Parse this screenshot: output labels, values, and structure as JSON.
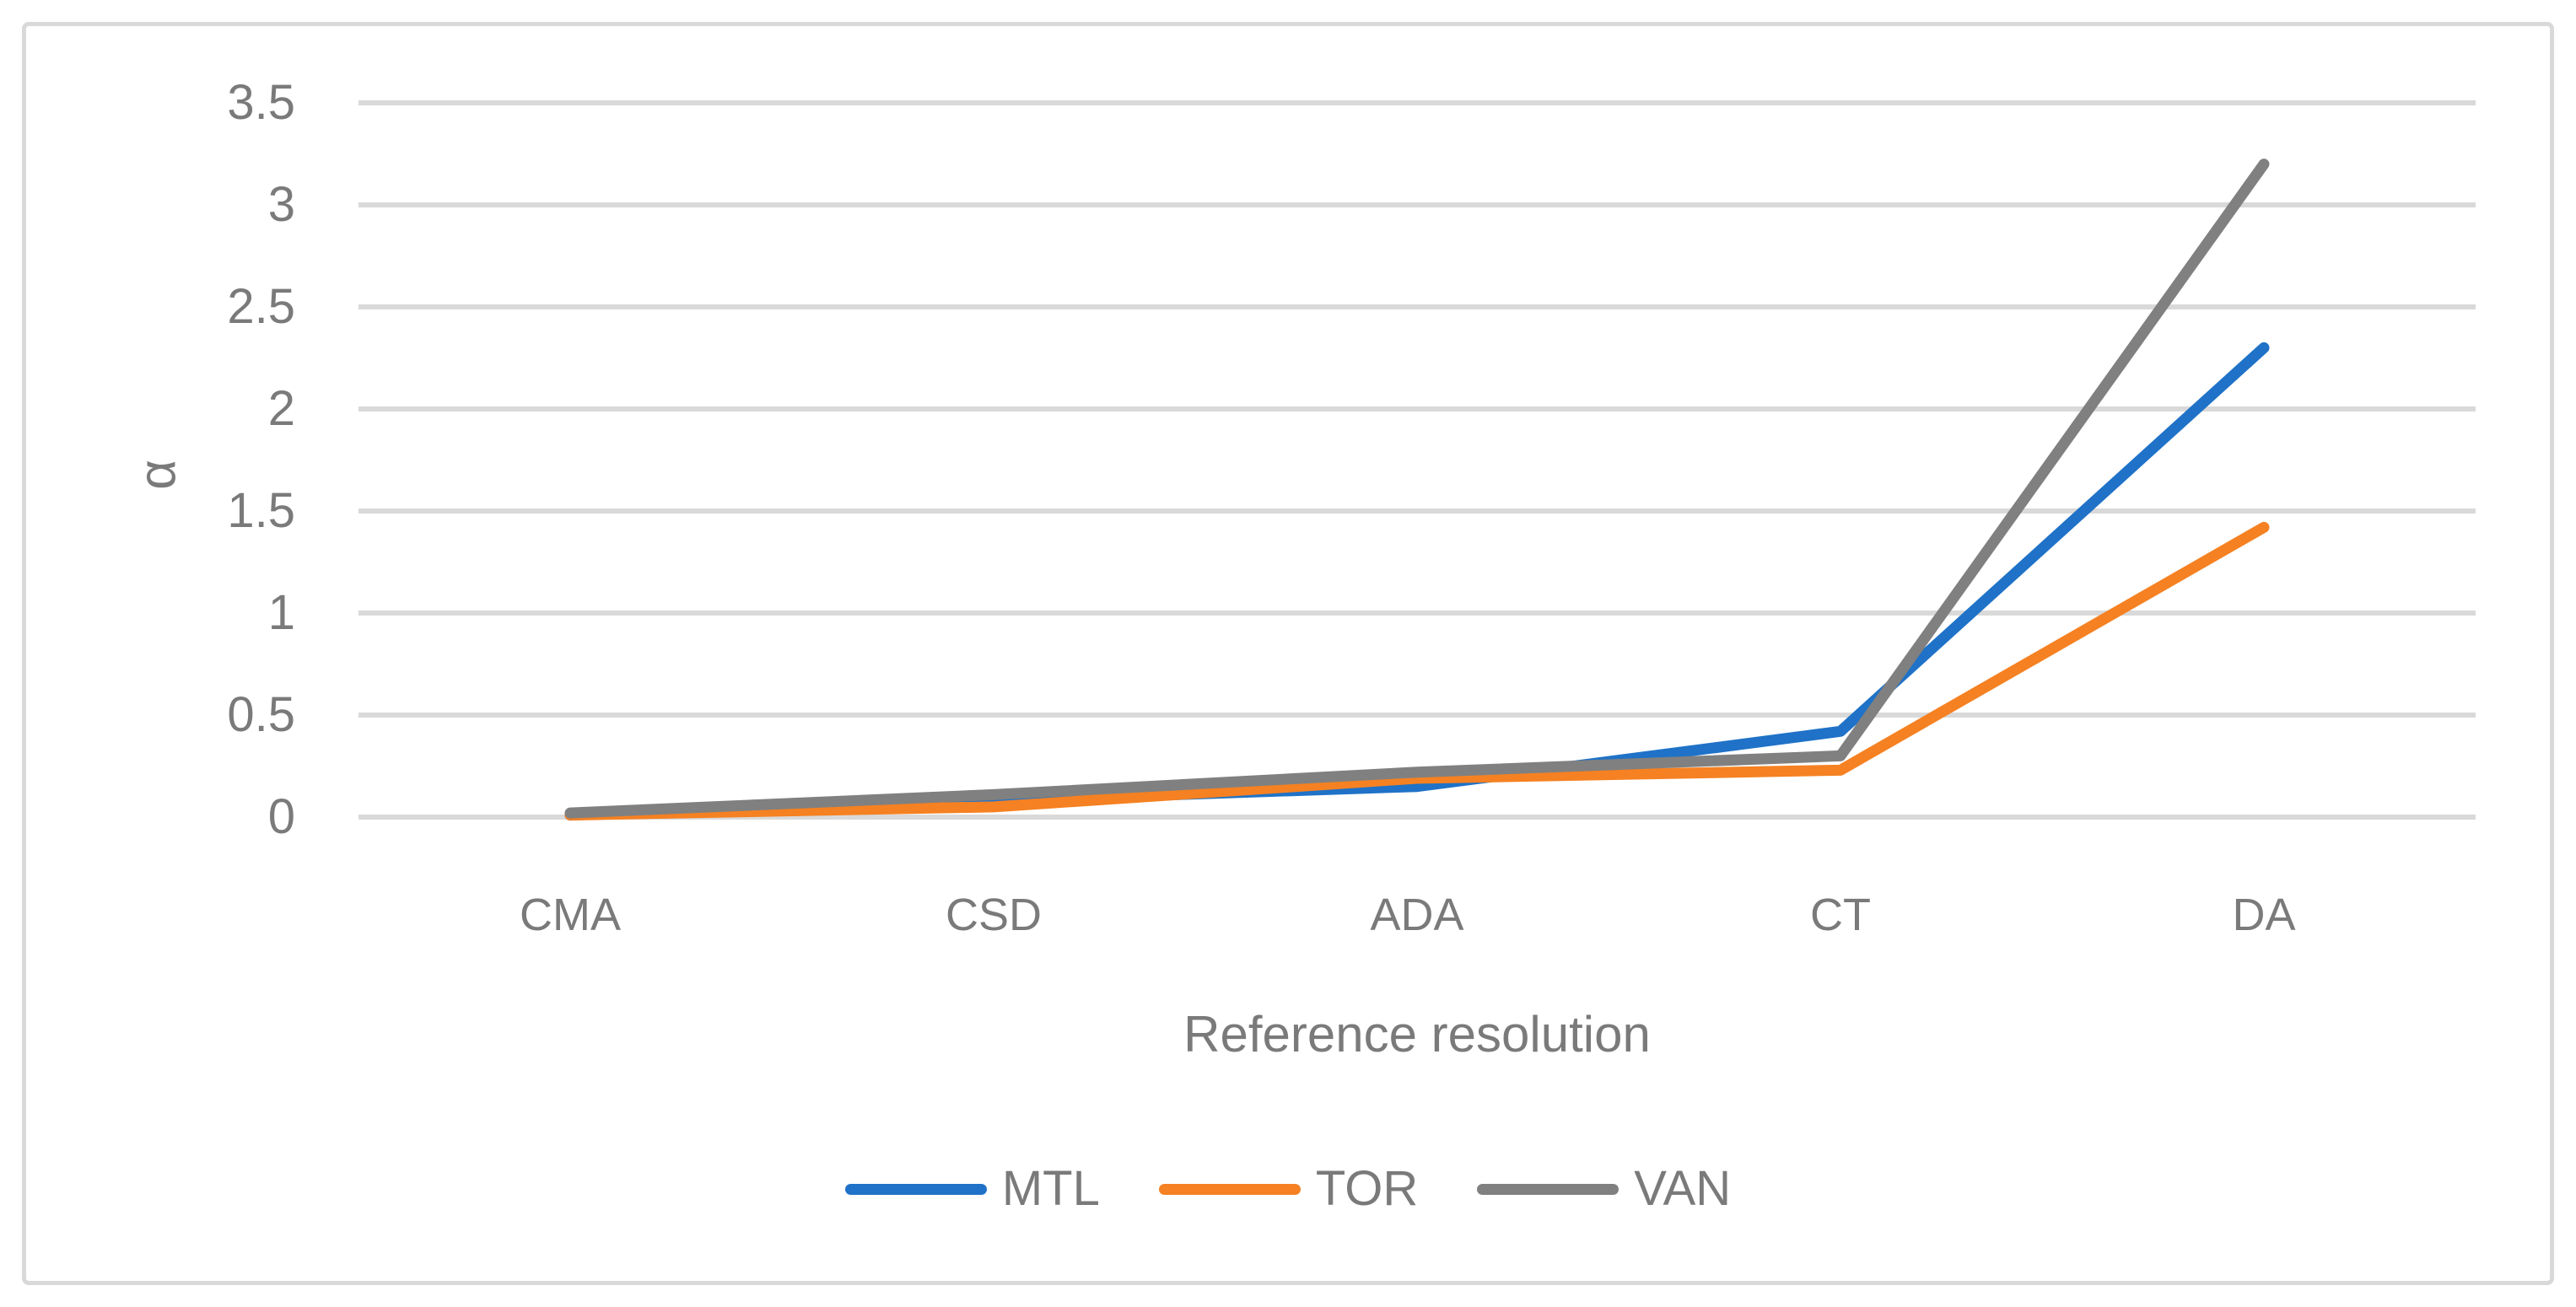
{
  "figure": {
    "background": "#FFFFFF",
    "border_color": "#D9D9D9"
  },
  "chart_data": {
    "type": "line",
    "title": "",
    "categories": [
      "CMA",
      "CSD",
      "ADA",
      "CT",
      "DA"
    ],
    "series": [
      {
        "name": "MTL",
        "color": "#1F72C7",
        "values": [
          0.01,
          0.08,
          0.15,
          0.42,
          2.3
        ]
      },
      {
        "name": "TOR",
        "color": "#F58122",
        "values": [
          0.01,
          0.05,
          0.19,
          0.23,
          1.42
        ]
      },
      {
        "name": "VAN",
        "color": "#808080",
        "values": [
          0.02,
          0.11,
          0.22,
          0.3,
          3.2
        ]
      }
    ],
    "xlabel": "Reference resolution",
    "ylabel": "α",
    "ylim": [
      0,
      3.5
    ],
    "y_ticks": [
      0,
      0.5,
      1,
      1.5,
      2,
      2.5,
      3,
      3.5
    ],
    "y_tick_labels": [
      "0",
      "0.5",
      "1",
      "1.5",
      "2",
      "2.5",
      "3",
      "3.5"
    ],
    "grid": "horizontal",
    "gridline_color": "#D9D9D9",
    "line_width": 13,
    "legend_position": "bottom-center",
    "text_color": "#7A7A7A",
    "markers": "none"
  }
}
